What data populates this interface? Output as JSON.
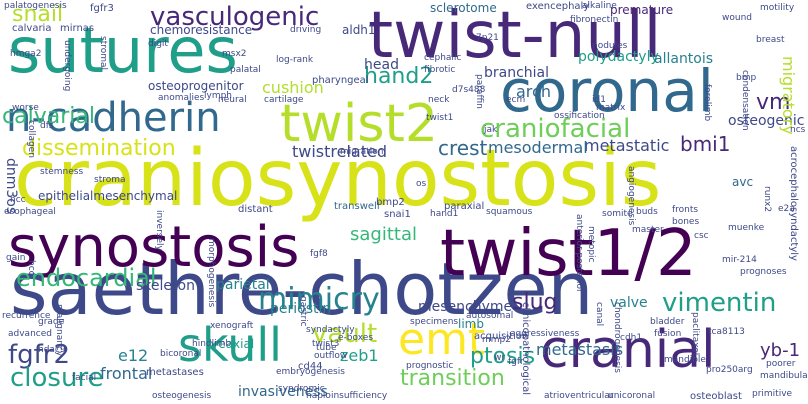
{
  "words": {
    "craniosynostosis": "craniosynostosis",
    "saethre_chotzen": "saethre-chotzen",
    "twist_null": "twist-null",
    "sutures": "sutures",
    "coronal": "coronal",
    "synostosis": "synostosis",
    "twist1_2": "twist1/2",
    "n_cadherin": "n-cadherin",
    "twist2": "twist2",
    "cranial": "cranial",
    "skull": "skull",
    "emt": "emt",
    "vasculogenic": "vasculogenic",
    "dissemination": "dissemination",
    "craniofacial": "craniofacial",
    "mimicry": "mimicry",
    "vimentin": "vimentin",
    "vault": "vault",
    "endocardial": "endocardial",
    "fgfr2": "fgfr2",
    "closure": "closure",
    "transition": "transition",
    "calvarial": "calvarial",
    "snail": "snail",
    "hand2": "hand2",
    "vm": "vm",
    "osteogenic": "osteogenic",
    "bmi1": "bmi1",
    "metastatic": "metastatic",
    "crest": "crest",
    "mesodermal": "mesodermal",
    "twistrelated": "twistrelated",
    "sagittal": "sagittal",
    "slug": "slug",
    "metastasis": "metastasis",
    "ptosis": "ptosis",
    "yb_1": "yb-1",
    "e12": "e12",
    "frontal": "frontal",
    "zeb1": "zeb1",
    "invasiveness": "invasiveness",
    "mesenchyme": "mesenchyme",
    "periostin": "periostin",
    "skeleton": "skeleton",
    "parietal": "parietal",
    "limb": "limb",
    "valve": "valve",
    "cushion": "cushion",
    "arch": "arch",
    "branchial": "branchial",
    "polydactyly": "polydactyly",
    "allantois": "allantois",
    "sclerotome": "sclerotome",
    "premature": "premature",
    "chemoresistance": "chemoresistance",
    "aldh1": "aldh1",
    "head": "head",
    "pharyngeal": "pharyngeal",
    "osteoprogenitor": "osteoprogenitor",
    "epithelialmesenchymal": "epithelialmesenchymal",
    "dnm3os": "dnm3os",
    "migratory": "migratory",
    "avc": "avc",
    "snai1": "snai1",
    "transwell": "transwell",
    "paraxial": "paraxial",
    "bmp2": "bmp2",
    "preaxial": "preaxial",
    "acquisition": "acquisition",
    "cd44": "cd44",
    "metastases": "metastases",
    "oncogene": "oncogene",
    "osteoblast": "osteoblast",
    "distant": "distant",
    "fgfr3": "fgfr3",
    "calvaria": "calvaria",
    "mirnas": "mirnas",
    "palatogenesis": "palatogenesis",
    "exencephaly": "exencephaly",
    "alkaline": "alkaline",
    "motility": "motility",
    "wound": "wound",
    "fibronectin": "fibronectin",
    "breast": "breast",
    "msx2": "msx2",
    "palatal": "palatal",
    "log_rank": "log-rank",
    "cephalic": "cephalic",
    "digit": "digit",
    "stromal": "stromal",
    "undergoing": "undergoing",
    "driving": "driving",
    "nodules": "nodules",
    "bmp": "bmp",
    "hmga2": "hmga2",
    "lymph": "lymph",
    "neural": "neural",
    "cartilage": "cartilage",
    "anomalies": "anomalies",
    "worse": "worse",
    "d7s488": "d7s488",
    "paraffin": "paraffin",
    "neck": "neck",
    "id1": "id1",
    "matrix": "matrix",
    "forelimb": "forelimb",
    "ncs": "ncs",
    "twist1": "twist1",
    "migration": "migration",
    "stemness": "stemness",
    "stroma": "stroma",
    "esophageal": "esophageal",
    "ncc": "ncc",
    "hcc": "hcc",
    "gain": "gain",
    "recurrence": "recurrence",
    "grade": "grade",
    "advanced": "advanced",
    "hdac9": "hdac9",
    "e2a": "e2a",
    "runx2": "runx2",
    "muenke": "muenke",
    "prognoses": "prognoses",
    "mir_214": "mir-214",
    "acrocephalosyndactyly": "acrocephalosyndactyly",
    "somite": "somite",
    "buds": "buds",
    "fronts": "fronts",
    "bones": "bones",
    "csc": "csc",
    "master": "master",
    "anterior_posterior": "anterior-posterior",
    "metopic": "metopic",
    "angiogenesis": "angiogenesis",
    "squamous": "squamous",
    "autosomal": "autosomal",
    "specimens": "specimens",
    "syndactyly": "syndactyly",
    "mmp2": "mmp2",
    "aggressiveness": "aggressiveness",
    "e_boxes": "e-boxes",
    "twist3": "twist3",
    "tube": "tube",
    "outflow": "outflow",
    "bicoronal": "bicoronal",
    "embryogenesis": "embryogenesis",
    "gastric": "gastric",
    "hindlimb": "hindlimb",
    "xenograft": "xenograft",
    "syndromic": "syndromic",
    "haploinsufficiency": "haploinsufficiency",
    "prognostic": "prognostic",
    "facial": "facial",
    "malignancy": "malignancy",
    "clinicopathological": "clinicopathological",
    "canal": "canal",
    "chondrogenesis": "chondrogenesis",
    "cdh1": "cdh1",
    "bladder": "bladder",
    "fusion": "fusion",
    "paclitaxel": "paclitaxel",
    "tca8113": "tca8113",
    "pro250arg": "pro250arg",
    "poorer": "poorer",
    "mandibular": "mandibular",
    "mandible": "mandible",
    "atrioventricular": "atrioventricular",
    "unicoronal": "unicoronal",
    "osteogenesis": "osteogenesis",
    "primitive": "primitive",
    "wr": "wr",
    "fgfr": "fgfr",
    "fgf8": "fgf8",
    "fibroblast": "fibroblast",
    "inversely": "inversely",
    "os": "os",
    "cells": "cells",
    "nlgf": "nlgf",
    "dfs": "dfs",
    "collagen": "collagen",
    "condensation": "condensation",
    "bmp4": "bmp4",
    "jak": "jak",
    "costa": "costa",
    "ossification": "ossification",
    "hand1": "hand1",
    "7p21": "7p21",
    "ecm": "ecm",
    "fibrotic": "fibrotic",
    "inflammation": "inflammation",
    "morphogenesis": "morphogenesis"
  }
}
